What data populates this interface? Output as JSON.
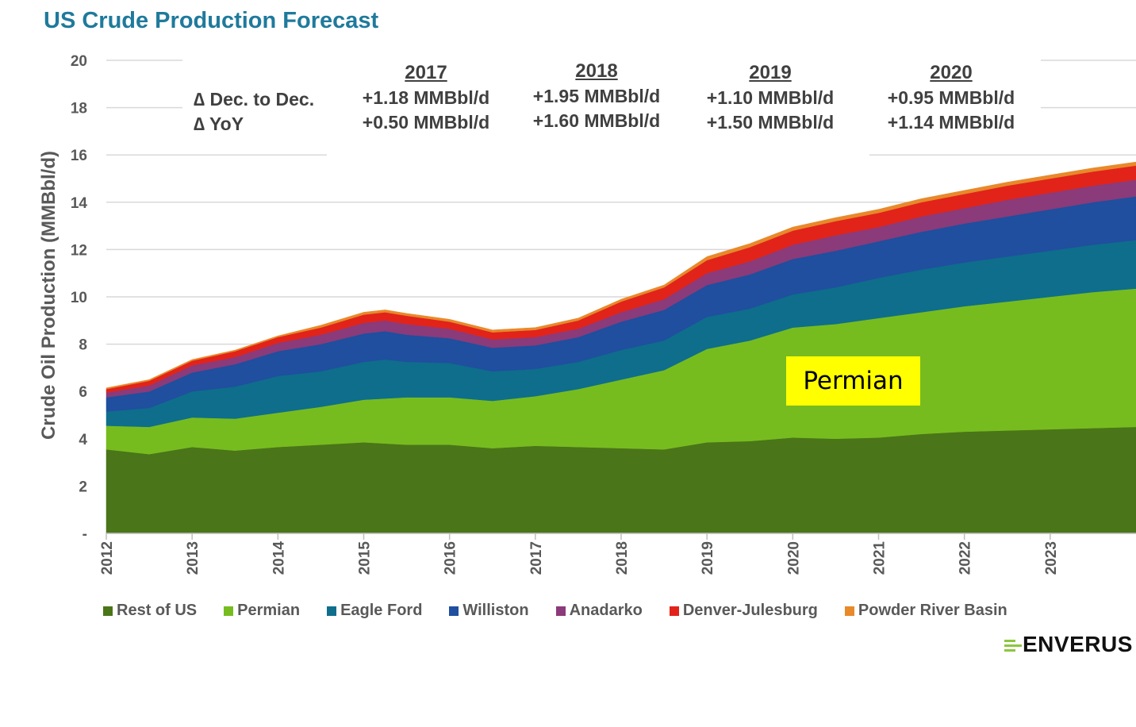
{
  "title": "US Crude Production Forecast",
  "chart_data": {
    "type": "area",
    "stacked": true,
    "title": "US Crude Production Forecast",
    "xlabel": "",
    "ylabel": "Crude Oil Production (MMBbl/d)",
    "ylim": [
      0,
      20
    ],
    "yticks": [
      "-",
      "2",
      "4",
      "6",
      "8",
      "10",
      "12",
      "14",
      "16",
      "18",
      "20"
    ],
    "xticks": [
      "2012",
      "2013",
      "2014",
      "2015",
      "2016",
      "2017",
      "2018",
      "2019",
      "2020",
      "2021",
      "2022",
      "2023"
    ],
    "x": [
      2012.0,
      2012.5,
      2013.0,
      2013.5,
      2014.0,
      2014.5,
      2015.0,
      2015.25,
      2015.5,
      2016.0,
      2016.5,
      2017.0,
      2017.5,
      2018.0,
      2018.5,
      2019.0,
      2019.5,
      2020.0,
      2020.5,
      2021.0,
      2021.5,
      2022.0,
      2022.5,
      2023.0,
      2023.5,
      2024.0
    ],
    "grid": true,
    "legend_position": "bottom",
    "series": [
      {
        "name": "Rest of US",
        "color": "#4a7518",
        "values": [
          3.55,
          3.35,
          3.65,
          3.5,
          3.65,
          3.75,
          3.85,
          3.8,
          3.75,
          3.75,
          3.6,
          3.7,
          3.65,
          3.6,
          3.55,
          3.85,
          3.9,
          4.05,
          4.0,
          4.05,
          4.2,
          4.3,
          4.35,
          4.4,
          4.45,
          4.5
        ]
      },
      {
        "name": "Permian",
        "color": "#77bc1f",
        "values": [
          1.0,
          1.15,
          1.25,
          1.35,
          1.45,
          1.6,
          1.8,
          1.9,
          2.0,
          2.0,
          2.0,
          2.1,
          2.45,
          2.9,
          3.35,
          3.95,
          4.25,
          4.65,
          4.85,
          5.05,
          5.15,
          5.3,
          5.45,
          5.6,
          5.75,
          5.85
        ]
      },
      {
        "name": "Eagle Ford",
        "color": "#0e6e8c",
        "values": [
          0.6,
          0.8,
          1.1,
          1.35,
          1.55,
          1.5,
          1.6,
          1.65,
          1.5,
          1.45,
          1.25,
          1.15,
          1.15,
          1.25,
          1.25,
          1.35,
          1.35,
          1.4,
          1.55,
          1.7,
          1.8,
          1.85,
          1.9,
          1.95,
          2.0,
          2.05
        ]
      },
      {
        "name": "Williston",
        "color": "#1f4f9e",
        "values": [
          0.6,
          0.7,
          0.8,
          0.95,
          1.05,
          1.15,
          1.2,
          1.2,
          1.15,
          1.05,
          1.0,
          1.0,
          1.05,
          1.2,
          1.3,
          1.35,
          1.45,
          1.5,
          1.55,
          1.55,
          1.6,
          1.65,
          1.7,
          1.75,
          1.8,
          1.85
        ]
      },
      {
        "name": "Anadarko",
        "color": "#8b3a7a",
        "values": [
          0.2,
          0.25,
          0.3,
          0.3,
          0.35,
          0.4,
          0.45,
          0.45,
          0.45,
          0.4,
          0.35,
          0.35,
          0.35,
          0.4,
          0.45,
          0.5,
          0.55,
          0.6,
          0.65,
          0.6,
          0.65,
          0.65,
          0.7,
          0.7,
          0.7,
          0.7
        ]
      },
      {
        "name": "Denver-Julesburg",
        "color": "#e2231a",
        "values": [
          0.15,
          0.2,
          0.2,
          0.25,
          0.25,
          0.3,
          0.35,
          0.35,
          0.35,
          0.3,
          0.3,
          0.3,
          0.35,
          0.45,
          0.5,
          0.55,
          0.6,
          0.6,
          0.6,
          0.6,
          0.6,
          0.6,
          0.6,
          0.6,
          0.6,
          0.6
        ]
      },
      {
        "name": "Powder River Basin",
        "color": "#e8892a",
        "values": [
          0.05,
          0.05,
          0.05,
          0.05,
          0.05,
          0.1,
          0.1,
          0.1,
          0.1,
          0.1,
          0.1,
          0.1,
          0.1,
          0.1,
          0.1,
          0.15,
          0.15,
          0.15,
          0.15,
          0.15,
          0.15,
          0.15,
          0.15,
          0.15,
          0.15,
          0.15
        ]
      }
    ],
    "annotations": {
      "row_labels": [
        "∆ Dec. to Dec.",
        "∆ YoY"
      ],
      "columns": [
        {
          "year": "2017",
          "dec_to_dec": "+1.18 MMBbl/d",
          "yoy": "+0.50 MMBbl/d"
        },
        {
          "year": "2018",
          "dec_to_dec": "+1.95 MMBbl/d",
          "yoy": "+1.60 MMBbl/d"
        },
        {
          "year": "2019",
          "dec_to_dec": "+1.10 MMBbl/d",
          "yoy": "+1.50 MMBbl/d"
        },
        {
          "year": "2020",
          "dec_to_dec": "+0.95 MMBbl/d",
          "yoy": "+1.14 MMBbl/d"
        }
      ],
      "callout": "Permian",
      "callout_color": "#ffff00"
    }
  },
  "logo": "ENVERUS",
  "colors": {
    "title": "#1f7a9c",
    "axis_text": "#595959",
    "logo_mark": "#8cc63f"
  }
}
